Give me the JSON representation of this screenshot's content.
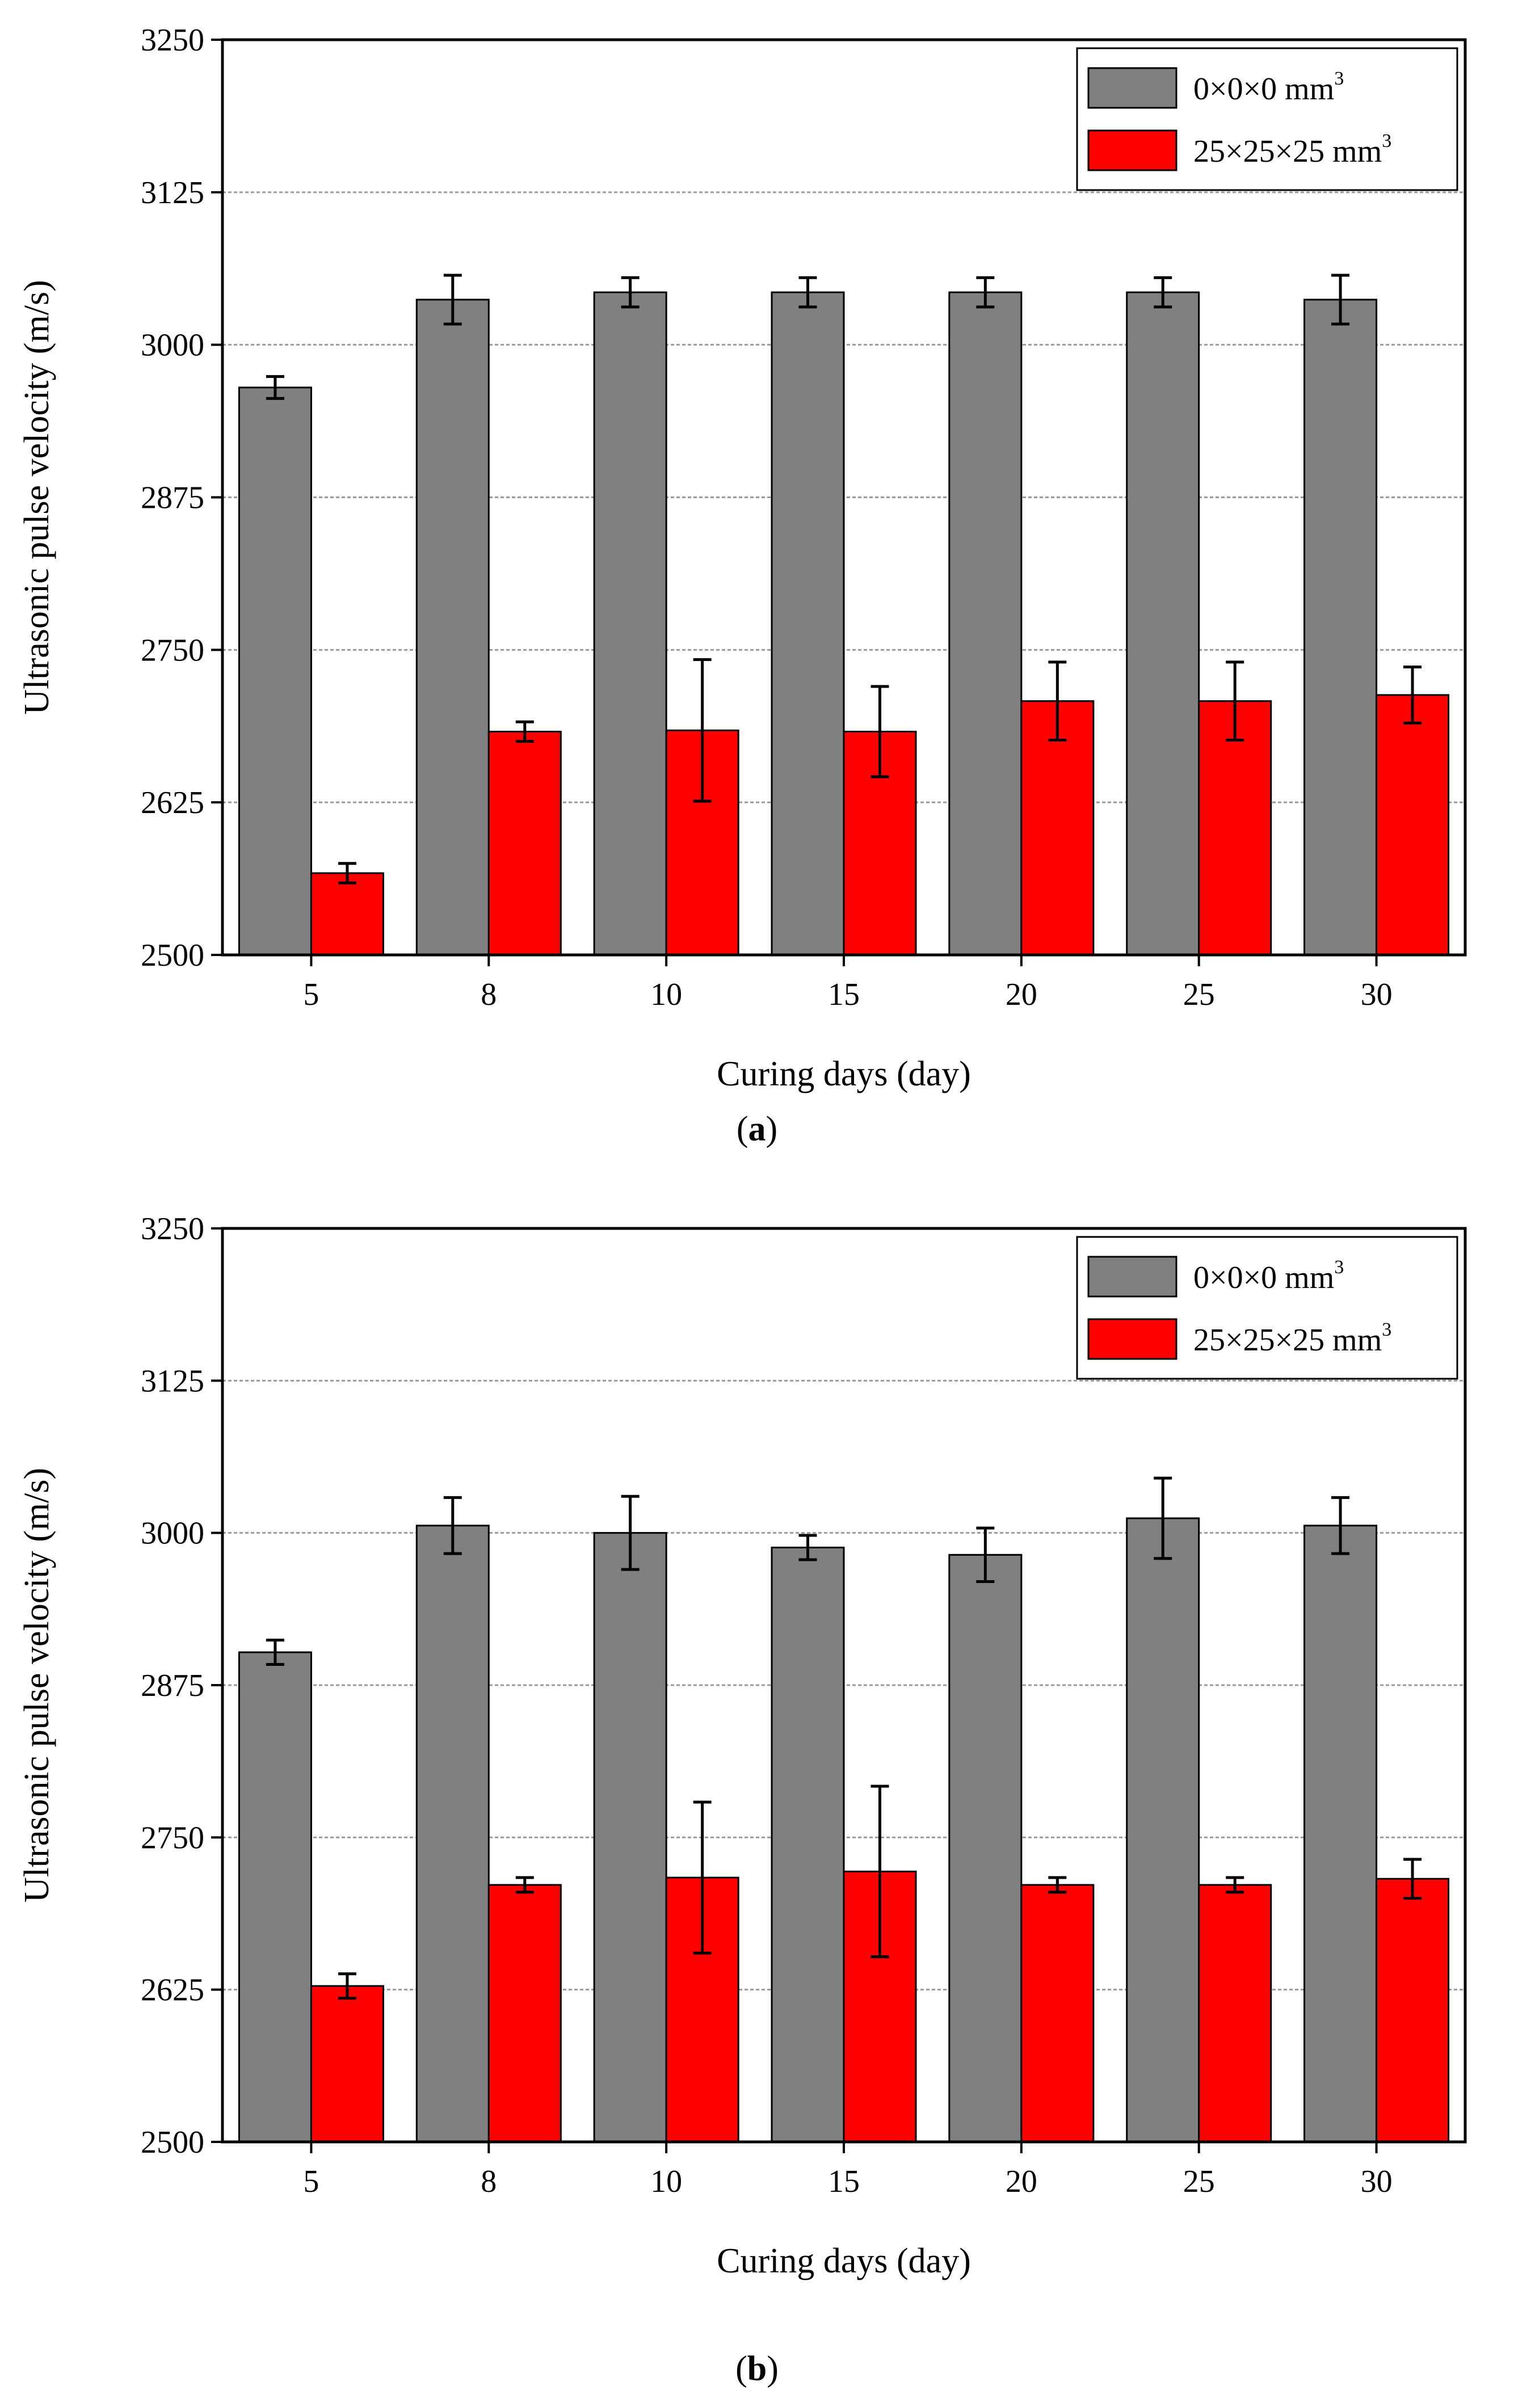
{
  "chart_data": [
    {
      "type": "bar",
      "panel_label": "a",
      "xlabel": "Curing days (day)",
      "ylabel": "Ultrasonic pulse velocity (m/s)",
      "ylim": [
        2500,
        3250
      ],
      "yticks": [
        "2500",
        "2625",
        "2750",
        "2875",
        "3000",
        "3125",
        "3250"
      ],
      "categories": [
        "5",
        "8",
        "10",
        "15",
        "20",
        "25",
        "30"
      ],
      "grid": "horizontal dotted",
      "legend_position": "top-right",
      "series": [
        {
          "name": "0×0×0 mm",
          "name_sup": "3",
          "color": "#808080",
          "values": [
            2965,
            3037,
            3043,
            3043,
            3043,
            3043,
            3037
          ],
          "errors": [
            9,
            20,
            12,
            12,
            12,
            12,
            20
          ]
        },
        {
          "name": "25×25×25 mm",
          "name_sup": "3",
          "color": "#ff0000",
          "values": [
            2567,
            2683,
            2684,
            2683,
            2708,
            2708,
            2713
          ],
          "errors": [
            8,
            8,
            58,
            37,
            32,
            32,
            23
          ]
        }
      ]
    },
    {
      "type": "bar",
      "panel_label": "b",
      "xlabel": "Curing days (day)",
      "ylabel": "Ultrasonic pulse velocity (m/s)",
      "ylim": [
        2500,
        3250
      ],
      "yticks": [
        "2500",
        "2625",
        "2750",
        "2875",
        "3000",
        "3125",
        "3250"
      ],
      "categories": [
        "5",
        "8",
        "10",
        "15",
        "20",
        "25",
        "30"
      ],
      "grid": "horizontal dotted",
      "legend_position": "top-right",
      "series": [
        {
          "name": "0×0×0 mm",
          "name_sup": "3",
          "color": "#808080",
          "values": [
            2902,
            3006,
            3000,
            2988,
            2982,
            3012,
            3006
          ],
          "errors": [
            10,
            23,
            30,
            10,
            22,
            33,
            23
          ]
        },
        {
          "name": "25×25×25 mm",
          "name_sup": "3",
          "color": "#ff0000",
          "values": [
            2628,
            2711,
            2717,
            2722,
            2711,
            2711,
            2716
          ],
          "errors": [
            10,
            6,
            62,
            70,
            6,
            6,
            16
          ]
        }
      ]
    }
  ]
}
